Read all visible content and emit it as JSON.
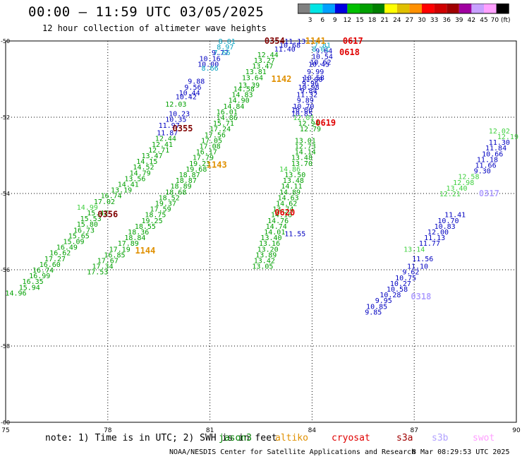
{
  "header": {
    "title": "00:00 – 11:59 UTC 03/05/2025",
    "subtitle": "12 hour collection of altimeter wave heights"
  },
  "colorbar": {
    "colors": [
      "#808080",
      "#00e5e5",
      "#00a0ff",
      "#0000e0",
      "#00c000",
      "#00a000",
      "#008000",
      "#ffff00",
      "#e0c000",
      "#ff9000",
      "#ff0000",
      "#d00000",
      "#a00000",
      "#a000a0",
      "#c8a0ff",
      "#ffa0ff",
      "#000000"
    ],
    "labels": [
      "3",
      "6",
      "9",
      "12",
      "15",
      "18",
      "21",
      "24",
      "27",
      "30",
      "33",
      "36",
      "39",
      "42",
      "45",
      "70 (ft)"
    ]
  },
  "chart_data": {
    "type": "scatter",
    "title": "12 hour collection of altimeter wave heights",
    "x_ticks": [
      "75",
      "78",
      "81",
      "84",
      "87",
      "90"
    ],
    "y_ticks": [
      "-50",
      "-52",
      "-54",
      "-56",
      "-58",
      "-60"
    ],
    "xlim": [
      75,
      90
    ],
    "ylim": [
      -60,
      -50
    ],
    "grid": true,
    "series": [
      {
        "name": "jason3",
        "color": "#0000c0",
        "points": [
          {
            "x": 81.3,
            "y": -50.3,
            "v": "9.77"
          },
          {
            "x": 81.0,
            "y": -50.45,
            "v": "10.16"
          },
          {
            "x": 80.95,
            "y": -50.6,
            "v": "10.00"
          },
          {
            "x": 80.6,
            "y": -51.05,
            "v": "9.88"
          },
          {
            "x": 80.5,
            "y": -51.2,
            "v": "9.56"
          },
          {
            "x": 80.4,
            "y": -51.35,
            "v": "10.44"
          },
          {
            "x": 80.3,
            "y": -51.45,
            "v": "10.42"
          },
          {
            "x": 80.1,
            "y": -51.9,
            "v": "10.23"
          },
          {
            "x": 80.0,
            "y": -52.05,
            "v": "10.35"
          },
          {
            "x": 79.8,
            "y": -52.2,
            "v": "11.97"
          },
          {
            "x": 79.75,
            "y": -52.4,
            "v": "11.87"
          },
          {
            "x": 83.5,
            "y": -50.0,
            "v": "11.13"
          },
          {
            "x": 83.35,
            "y": -50.1,
            "v": "10.68"
          },
          {
            "x": 83.2,
            "y": -50.2,
            "v": "11.40"
          },
          {
            "x": 84.35,
            "y": -50.25,
            "v": "9.64"
          },
          {
            "x": 84.3,
            "y": -50.4,
            "v": "10.54"
          },
          {
            "x": 84.25,
            "y": -50.55,
            "v": "10.62"
          },
          {
            "x": 84.2,
            "y": -50.6,
            "v": "10.45"
          },
          {
            "x": 84.1,
            "y": -50.8,
            "v": "9.99"
          },
          {
            "x": 84.05,
            "y": -50.95,
            "v": "10.58"
          },
          {
            "x": 84.0,
            "y": -51.0,
            "v": "11.00"
          },
          {
            "x": 83.95,
            "y": -51.1,
            "v": "9.96"
          },
          {
            "x": 83.9,
            "y": -51.2,
            "v": "10.98"
          },
          {
            "x": 83.9,
            "y": -51.3,
            "v": "9.84"
          },
          {
            "x": 83.85,
            "y": -51.4,
            "v": "11.32"
          },
          {
            "x": 83.8,
            "y": -51.55,
            "v": "9.89"
          },
          {
            "x": 83.75,
            "y": -51.7,
            "v": "10.70"
          },
          {
            "x": 83.7,
            "y": -51.8,
            "v": "10.66"
          },
          {
            "x": 83.7,
            "y": -51.9,
            "v": "10.85"
          },
          {
            "x": 83.5,
            "y": -55.05,
            "v": "11.55"
          },
          {
            "x": 89.5,
            "y": -52.65,
            "v": "11.30"
          },
          {
            "x": 89.4,
            "y": -52.8,
            "v": "11.84"
          },
          {
            "x": 89.3,
            "y": -52.95,
            "v": "10.66"
          },
          {
            "x": 89.15,
            "y": -53.1,
            "v": "11.18"
          },
          {
            "x": 89.1,
            "y": -53.25,
            "v": "11.66"
          },
          {
            "x": 89.0,
            "y": -53.4,
            "v": "9.30"
          },
          {
            "x": 88.2,
            "y": -54.55,
            "v": "11.41"
          },
          {
            "x": 88.0,
            "y": -54.7,
            "v": "10.70"
          },
          {
            "x": 87.9,
            "y": -54.85,
            "v": "10.83"
          },
          {
            "x": 87.7,
            "y": -55.0,
            "v": "12.00"
          },
          {
            "x": 87.6,
            "y": -55.15,
            "v": "11.13"
          },
          {
            "x": 87.45,
            "y": -55.3,
            "v": "11.77"
          },
          {
            "x": 87.25,
            "y": -55.7,
            "v": "11.56"
          },
          {
            "x": 87.1,
            "y": -55.9,
            "v": "11.10"
          },
          {
            "x": 86.9,
            "y": -56.05,
            "v": "9.62"
          },
          {
            "x": 86.75,
            "y": -56.2,
            "v": "10.75"
          },
          {
            "x": 86.6,
            "y": -56.35,
            "v": "10.27"
          },
          {
            "x": 86.5,
            "y": -56.5,
            "v": "10.58"
          },
          {
            "x": 86.3,
            "y": -56.65,
            "v": "10.28"
          },
          {
            "x": 86.1,
            "y": -56.8,
            "v": "9.95"
          },
          {
            "x": 85.9,
            "y": -56.95,
            "v": "10.85"
          },
          {
            "x": 85.8,
            "y": -57.1,
            "v": "9.85"
          }
        ]
      },
      {
        "name": "saral",
        "color": "#00a000",
        "points": [
          {
            "x": 80.0,
            "y": -51.65,
            "v": "12.03"
          },
          {
            "x": 79.7,
            "y": -52.55,
            "v": "12.44"
          },
          {
            "x": 79.6,
            "y": -52.7,
            "v": "12.41"
          },
          {
            "x": 79.5,
            "y": -52.85,
            "v": "12.71"
          },
          {
            "x": 79.3,
            "y": -53.0,
            "v": "13.47"
          },
          {
            "x": 79.15,
            "y": -53.15,
            "v": "14.15"
          },
          {
            "x": 79.05,
            "y": -53.3,
            "v": "14.52"
          },
          {
            "x": 78.95,
            "y": -53.45,
            "v": "14.79"
          },
          {
            "x": 78.8,
            "y": -53.6,
            "v": "13.56"
          },
          {
            "x": 78.6,
            "y": -53.75,
            "v": "14.41"
          },
          {
            "x": 78.4,
            "y": -53.9,
            "v": "13.19"
          },
          {
            "x": 82.7,
            "y": -50.35,
            "v": "12.44"
          },
          {
            "x": 82.6,
            "y": -50.5,
            "v": "13.27"
          },
          {
            "x": 82.55,
            "y": -50.65,
            "v": "13.47"
          },
          {
            "x": 82.35,
            "y": -50.8,
            "v": "13.81"
          },
          {
            "x": 82.25,
            "y": -50.95,
            "v": "13.64"
          },
          {
            "x": 82.15,
            "y": -51.15,
            "v": "13.39"
          },
          {
            "x": 82.0,
            "y": -51.25,
            "v": "14.58"
          },
          {
            "x": 81.95,
            "y": -51.4,
            "v": "14.83"
          },
          {
            "x": 81.85,
            "y": -51.55,
            "v": "14.90"
          },
          {
            "x": 81.7,
            "y": -51.7,
            "v": "14.84"
          },
          {
            "x": 81.5,
            "y": -51.85,
            "v": "16.01"
          },
          {
            "x": 81.5,
            "y": -52.0,
            "v": "14.86"
          },
          {
            "x": 81.4,
            "y": -52.15,
            "v": "15.71"
          },
          {
            "x": 81.3,
            "y": -52.3,
            "v": "17.24"
          },
          {
            "x": 81.15,
            "y": -52.45,
            "v": "17.56"
          },
          {
            "x": 81.05,
            "y": -52.6,
            "v": "17.05"
          },
          {
            "x": 81.0,
            "y": -52.75,
            "v": "17.08"
          },
          {
            "x": 80.9,
            "y": -52.9,
            "v": "16.17"
          },
          {
            "x": 80.8,
            "y": -53.05,
            "v": "17.79"
          },
          {
            "x": 80.7,
            "y": -53.2,
            "v": "19.23"
          },
          {
            "x": 80.6,
            "y": -53.35,
            "v": "19.68"
          },
          {
            "x": 80.4,
            "y": -53.5,
            "v": "18.87"
          },
          {
            "x": 80.3,
            "y": -53.65,
            "v": "18.87"
          },
          {
            "x": 80.15,
            "y": -53.8,
            "v": "18.89"
          },
          {
            "x": 80.0,
            "y": -53.95,
            "v": "18.68"
          },
          {
            "x": 79.8,
            "y": -54.1,
            "v": "18.52"
          },
          {
            "x": 79.7,
            "y": -54.25,
            "v": "19.37"
          },
          {
            "x": 79.55,
            "y": -54.4,
            "v": "17.59"
          },
          {
            "x": 79.4,
            "y": -54.55,
            "v": "18.75"
          },
          {
            "x": 79.3,
            "y": -54.7,
            "v": "19.25"
          },
          {
            "x": 79.1,
            "y": -54.85,
            "v": "18.55"
          },
          {
            "x": 78.9,
            "y": -55.0,
            "v": "18.36"
          },
          {
            "x": 78.8,
            "y": -55.15,
            "v": "18.84"
          },
          {
            "x": 78.6,
            "y": -55.3,
            "v": "17.89"
          },
          {
            "x": 78.35,
            "y": -55.45,
            "v": "17.19"
          },
          {
            "x": 78.2,
            "y": -55.6,
            "v": "16.85"
          },
          {
            "x": 78.0,
            "y": -55.75,
            "v": "17.67"
          },
          {
            "x": 77.85,
            "y": -55.9,
            "v": "17.34"
          },
          {
            "x": 77.7,
            "y": -56.05,
            "v": "17.53"
          },
          {
            "x": 78.1,
            "y": -54.05,
            "v": "16.74"
          },
          {
            "x": 77.9,
            "y": -54.2,
            "v": "17.02"
          },
          {
            "x": 77.7,
            "y": -54.5,
            "v": "15.42"
          },
          {
            "x": 77.5,
            "y": -54.65,
            "v": "15.53"
          },
          {
            "x": 77.4,
            "y": -54.8,
            "v": "15.80"
          },
          {
            "x": 77.3,
            "y": -54.95,
            "v": "16.73"
          },
          {
            "x": 77.15,
            "y": -55.1,
            "v": "15.65"
          },
          {
            "x": 77.0,
            "y": -55.25,
            "v": "15.09"
          },
          {
            "x": 76.8,
            "y": -55.4,
            "v": "16.49"
          },
          {
            "x": 76.6,
            "y": -55.55,
            "v": "16.62"
          },
          {
            "x": 76.45,
            "y": -55.7,
            "v": "17.27"
          },
          {
            "x": 76.3,
            "y": -55.85,
            "v": "16.60"
          },
          {
            "x": 76.1,
            "y": -56.0,
            "v": "16.74"
          },
          {
            "x": 76.0,
            "y": -56.15,
            "v": "16.99"
          },
          {
            "x": 75.8,
            "y": -56.3,
            "v": "16.35"
          },
          {
            "x": 75.7,
            "y": -56.45,
            "v": "15.94"
          },
          {
            "x": 83.9,
            "y": -52.15,
            "v": "12.94"
          },
          {
            "x": 83.95,
            "y": -52.3,
            "v": "12.79"
          },
          {
            "x": 83.8,
            "y": -52.6,
            "v": "13.01"
          },
          {
            "x": 83.8,
            "y": -52.75,
            "v": "12.73"
          },
          {
            "x": 83.8,
            "y": -52.9,
            "v": "14.14"
          },
          {
            "x": 83.7,
            "y": -53.05,
            "v": "13.48"
          },
          {
            "x": 83.7,
            "y": -53.2,
            "v": "13.70"
          },
          {
            "x": 83.5,
            "y": -53.5,
            "v": "13.50"
          },
          {
            "x": 83.45,
            "y": -53.65,
            "v": "13.48"
          },
          {
            "x": 83.4,
            "y": -53.8,
            "v": "14.11"
          },
          {
            "x": 83.35,
            "y": -53.95,
            "v": "14.89"
          },
          {
            "x": 83.3,
            "y": -54.1,
            "v": "14.63"
          },
          {
            "x": 83.25,
            "y": -54.25,
            "v": "14.62"
          },
          {
            "x": 83.15,
            "y": -54.4,
            "v": "13.74"
          },
          {
            "x": 83.1,
            "y": -54.55,
            "v": "14.16"
          },
          {
            "x": 83.0,
            "y": -54.7,
            "v": "14.76"
          },
          {
            "x": 82.95,
            "y": -54.85,
            "v": "14.74"
          },
          {
            "x": 82.9,
            "y": -55.0,
            "v": "14.01"
          },
          {
            "x": 82.8,
            "y": -55.15,
            "v": "13.40"
          },
          {
            "x": 82.75,
            "y": -55.3,
            "v": "13.16"
          },
          {
            "x": 82.7,
            "y": -55.45,
            "v": "13.20"
          },
          {
            "x": 82.65,
            "y": -55.6,
            "v": "13.89"
          },
          {
            "x": 82.6,
            "y": -55.75,
            "v": "13.42"
          },
          {
            "x": 82.55,
            "y": -55.9,
            "v": "13.05"
          },
          {
            "x": 75.3,
            "y": -56.6,
            "v": "14.96"
          }
        ]
      },
      {
        "name": "saral-light",
        "color": "#40d040",
        "points": [
          {
            "x": 83.75,
            "y": -52.0,
            "v": "12.01"
          },
          {
            "x": 89.75,
            "y": -52.5,
            "v": "12.19"
          },
          {
            "x": 89.5,
            "y": -52.35,
            "v": "12.02"
          },
          {
            "x": 88.6,
            "y": -53.55,
            "v": "12.58"
          },
          {
            "x": 88.45,
            "y": -53.7,
            "v": "12.98"
          },
          {
            "x": 88.25,
            "y": -53.85,
            "v": "13.40"
          },
          {
            "x": 88.05,
            "y": -54.0,
            "v": "12.21"
          },
          {
            "x": 87.0,
            "y": -55.45,
            "v": "13.14"
          },
          {
            "x": 77.4,
            "y": -54.35,
            "v": "14.99"
          },
          {
            "x": 83.35,
            "y": -53.35,
            "v": "14.86"
          }
        ]
      },
      {
        "name": "altika-cyan",
        "color": "#00a0c0",
        "points": [
          {
            "x": 81.5,
            "y": -50.0,
            "v": "8.01"
          },
          {
            "x": 81.45,
            "y": -50.15,
            "v": "8.97"
          },
          {
            "x": 81.35,
            "y": -50.3,
            "v": "7.66"
          },
          {
            "x": 81.0,
            "y": -50.7,
            "v": "8.66"
          },
          {
            "x": 84.3,
            "y": -50.1,
            "v": "7.81"
          },
          {
            "x": 84.25,
            "y": -50.2,
            "v": "8.01"
          }
        ]
      },
      {
        "name": "pass-labels",
        "points": [
          {
            "x": 82.9,
            "y": -50.0,
            "v": "0354",
            "color": "#800000"
          },
          {
            "x": 80.2,
            "y": -52.3,
            "v": "0355",
            "color": "#800000"
          },
          {
            "x": 78.0,
            "y": -54.55,
            "v": "0356",
            "color": "#800000"
          },
          {
            "x": 84.1,
            "y": -50.0,
            "v": "1141",
            "color": "#e09000"
          },
          {
            "x": 83.1,
            "y": -51.0,
            "v": "1142",
            "color": "#e09000"
          },
          {
            "x": 81.2,
            "y": -53.25,
            "v": "1143",
            "color": "#e09000"
          },
          {
            "x": 79.1,
            "y": -55.5,
            "v": "1144",
            "color": "#e09000"
          },
          {
            "x": 85.2,
            "y": -50.0,
            "v": "0617",
            "color": "#e00000"
          },
          {
            "x": 85.1,
            "y": -50.3,
            "v": "0618",
            "color": "#e00000"
          },
          {
            "x": 84.4,
            "y": -52.15,
            "v": "0619",
            "color": "#e00000"
          },
          {
            "x": 83.2,
            "y": -54.5,
            "v": "0620",
            "color": "#e00000"
          },
          {
            "x": 89.2,
            "y": -54.0,
            "v": "0317",
            "color": "#b0a0ff"
          },
          {
            "x": 87.2,
            "y": -56.7,
            "v": "0318",
            "color": "#b0a0ff"
          }
        ]
      }
    ]
  },
  "footer": {
    "note": "note:  1) Time is in UTC; 2) SWH is in feet",
    "satellites": [
      {
        "label": "jason3",
        "color": "#008000"
      },
      {
        "label": "altiko",
        "color": "#e09000"
      },
      {
        "label": "cryosat",
        "color": "#e00000"
      },
      {
        "label": "s3a",
        "color": "#a00000"
      },
      {
        "label": "s3b",
        "color": "#b0a0ff"
      },
      {
        "label": "swot",
        "color": "#ffa0ff"
      }
    ],
    "credit": "NOAA/NESDIS Center for Satellite Applications and Research",
    "timestamp": "8 Mar 08:29:53 UTC 2025"
  }
}
